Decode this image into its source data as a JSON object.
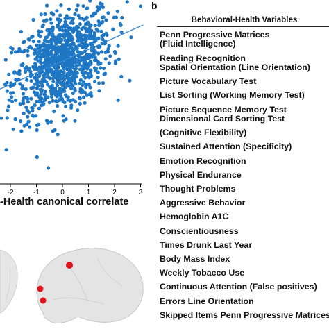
{
  "panel_a": {
    "x_axis_label": "-Health canonical correlate",
    "x_ticks": [
      "-2",
      "-1",
      "0",
      "1",
      "2",
      "3"
    ]
  },
  "panel_b": {
    "label": "b",
    "header": "Behavioral-Health Variables",
    "variables": [
      "Penn Progressive Matrices",
      "(Fluid Intelligence)",
      "Reading Recognition",
      "Spatial Orientation (Line Orientation)",
      "Picture Vocabulary Test",
      "List Sorting (Working Memory  Test)",
      "Picture Sequence Memory  Test",
      "Dimensional Card Sorting Test",
      "(Cognitive Flexibility)",
      "Sustained Attention (Specificity)",
      "Emotion Recognition",
      "Physical Endurance",
      "Thought Problems",
      "Aggressive Behavior",
      "Hemoglobin A1C",
      "Conscientiousness",
      "Times Drunk Last Year",
      "Body Mass Index",
      "Weekly Tobacco Use",
      "Continuous Attention (False positives)",
      "Errors Line Orientation",
      "Skipped Items Penn Progressive Matrices"
    ]
  },
  "colors": {
    "points": "#1f77c4",
    "fit_line": "#2e86cf",
    "brain": "#e4e4e4",
    "brain_node": "#e0141b"
  },
  "chart_data": {
    "type": "scatter",
    "xlabel": "-Health canonical correlate",
    "ylabel": "",
    "xlim": [
      -3,
      3
    ],
    "ylim": [
      -3,
      3
    ],
    "x_ticks": [
      -2,
      -1,
      0,
      1,
      2,
      3
    ],
    "fit_line": {
      "slope": 0.42,
      "intercept": 0.0
    },
    "n_points": 1000,
    "point_cloud": {
      "center": [
        0.0,
        0.0
      ],
      "sd_x": 0.95,
      "correlation": 0.42,
      "sd_y": 1.0
    }
  }
}
